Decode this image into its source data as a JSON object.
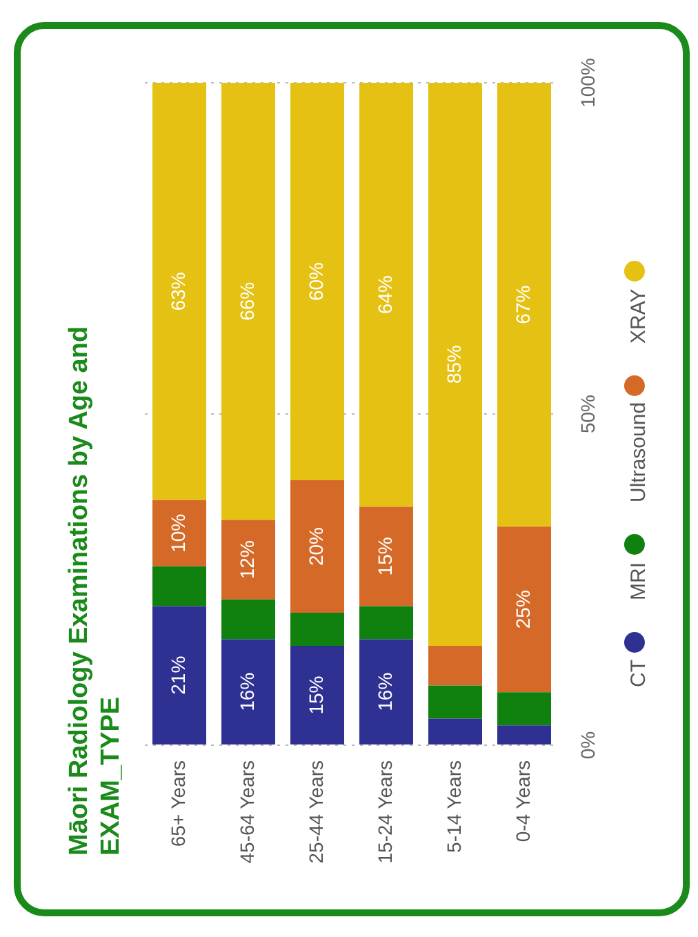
{
  "chart_data": {
    "type": "bar",
    "stacked": true,
    "title": "Māori Radiology Examinations by Age and EXAM_TYPE",
    "categories": [
      "65+ Years",
      "45-64 Years",
      "25-44 Years",
      "15-24 Years",
      "5-14 Years",
      "0-4 Years"
    ],
    "series": [
      {
        "name": "CT",
        "color": "#2e3192",
        "values": [
          21,
          16,
          15,
          16,
          4,
          3
        ],
        "value_labels": [
          "21%",
          "16%",
          "15%",
          "16%",
          null,
          null
        ]
      },
      {
        "name": "MRI",
        "color": "#10800f",
        "values": [
          6,
          6,
          5,
          5,
          5,
          5
        ],
        "value_labels": [
          null,
          null,
          null,
          null,
          null,
          null
        ]
      },
      {
        "name": "Ultrasound",
        "color": "#d56a28",
        "values": [
          10,
          12,
          20,
          15,
          6,
          25
        ],
        "value_labels": [
          "10%",
          "12%",
          "20%",
          "15%",
          null,
          "25%"
        ]
      },
      {
        "name": "XRAY",
        "color": "#e5c114",
        "values": [
          63,
          66,
          60,
          64,
          85,
          67
        ],
        "value_labels": [
          "63%",
          "66%",
          "60%",
          "64%",
          "85%",
          "67%"
        ]
      }
    ],
    "ylim": [
      0,
      100
    ],
    "yticks": [
      {
        "value": 0,
        "label": "0%"
      },
      {
        "value": 50,
        "label": "50%"
      },
      {
        "value": 100,
        "label": "100%"
      }
    ],
    "grid": "y",
    "legend": "right"
  }
}
